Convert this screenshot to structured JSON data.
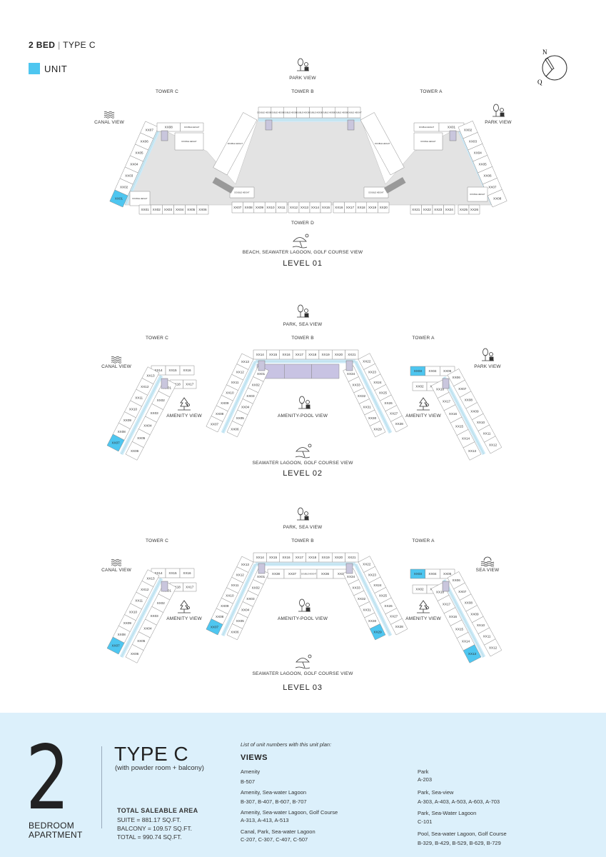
{
  "header": {
    "bed": "2 BED",
    "separator": "|",
    "type": "TYPE C"
  },
  "legend": {
    "label": "UNIT",
    "color": "#4ec6f0"
  },
  "compass": {
    "north": "N",
    "other": "Q"
  },
  "colors": {
    "unit_highlight": "#4ec6f0",
    "corridor": "#cdeaf8",
    "common_area": "#e3e3e3",
    "amenity_pool": "#c8c3e3",
    "panel": "#dcf0fb"
  },
  "levels": [
    {
      "title": "LEVEL 01",
      "top_view": "PARK VIEW",
      "bottom_view": "BEACH, SEAWATER LAGOON, GOLF COURSE VIEW",
      "towers": {
        "c": "TOWER C",
        "b": "TOWER B",
        "a": "TOWER A",
        "d": "TOWER D"
      },
      "left_view": "CANAL VIEW",
      "right_view": "PARK VIEW",
      "wings": {
        "c_diag": [
          "XX01",
          "XX02",
          "XX03",
          "XX04",
          "XX05",
          "XX06",
          "XX07"
        ],
        "c_top": [
          "XX08",
          "DOUBLE HEIGHT"
        ],
        "c_top2": [
          "DOUBLE HEIGHT"
        ],
        "c_low": [
          "DOUBLE HEIGHT"
        ],
        "c_bot": [
          "XX01",
          "XX02",
          "XX03",
          "XX04",
          "XX05",
          "XX06"
        ],
        "b_top": [
          "DOUBLE HEIGHT",
          "DOUBLE HEIGHT",
          "DOUBLE HEIGHT",
          "DOUBLE HEIGHT",
          "DOUBLE HEIGHT",
          "DOUBLE HEIGHT",
          "DOUBLE HEIGHT",
          "DOUBLE HEIGHT"
        ],
        "b_left": [
          "DOUBLE HEIGHT"
        ],
        "b_right": [
          "DOUBLE HEIGHT"
        ],
        "d_left_dh": [
          "DOUBLE HEIGHT"
        ],
        "d_right_dh": [
          "DOUBLE HEIGHT"
        ],
        "d_row1": [
          "XX07",
          "XX08",
          "XX09",
          "XX10",
          "XX11"
        ],
        "d_row2": [
          "XX12",
          "XX13",
          "XX14",
          "XX15"
        ],
        "d_row3": [
          "XX16",
          "XX17",
          "XX18",
          "XX19",
          "XX20"
        ],
        "a_top": [
          "DOUBLE HEIGHT",
          "XX01"
        ],
        "a_top2": [
          "DOUBLE HEIGHT"
        ],
        "a_diag": [
          "XX02",
          "XX03",
          "XX04",
          "XX05",
          "XX06",
          "XX07",
          "XX08"
        ],
        "a_low": [
          "DOUBLE HEIGHT"
        ],
        "a_bot1": [
          "XX21",
          "XX22",
          "XX23",
          "XX24"
        ],
        "a_bot2": [
          "XX25",
          "XX26"
        ]
      },
      "highlighted": [
        "c_diag:XX01"
      ]
    },
    {
      "title": "LEVEL 02",
      "top_view": "PARK, SEA VIEW",
      "bottom_view": "SEAWATER LAGOON, GOLF COURSE VIEW",
      "towers": {
        "c": "TOWER C",
        "b": "TOWER B",
        "a": "TOWER A"
      },
      "left_view": "CANAL VIEW",
      "right_view": "PARK VIEW",
      "amenity_left": "AMENITY VIEW",
      "amenity_center": "AMENITY-POOL VIEW",
      "amenity_right": "AMENITY VIEW",
      "wings": {
        "c_top": [
          "XX14",
          "XX15",
          "XX16"
        ],
        "c_top2": [
          "XX18",
          "XX17"
        ],
        "c_out": [
          "XX13",
          "XX12",
          "XX11",
          "XX10",
          "XX09",
          "XX08",
          "XX07"
        ],
        "c_in": [
          "XX01",
          "XX02",
          "XX03",
          "XX04",
          "XX05",
          "XX06"
        ],
        "b_top": [
          "XX14",
          "XX15",
          "XX16",
          "XX17",
          "XX18",
          "XX19",
          "XX20",
          "XX21"
        ],
        "b_mid": [
          "",
          "",
          ""
        ],
        "b_lout": [
          "XX13",
          "XX12",
          "XX11",
          "XX10",
          "XX09",
          "XX08",
          "XX07"
        ],
        "b_lin": [
          "XX01",
          "XX02",
          "XX03",
          "XX04",
          "XX05",
          "XX06"
        ],
        "b_rout": [
          "XX22",
          "XX23",
          "XX24",
          "XX25",
          "XX26",
          "XX27",
          "XX28"
        ],
        "b_rin": [
          "XX34",
          "XX33",
          "XX32",
          "XX31",
          "XX30",
          "XX29"
        ],
        "a_top": [
          "XX03",
          "XX04",
          "XX05"
        ],
        "a_top2": [
          "XX02",
          "XX01"
        ],
        "a_out": [
          "XX06",
          "XX07",
          "XX08",
          "XX09",
          "XX10",
          "XX11",
          "XX12"
        ],
        "a_in": [
          "XX18",
          "XX17",
          "XX16",
          "XX15",
          "XX14",
          "XX13"
        ]
      },
      "highlighted": [
        "c_out:XX07",
        "a_top:XX03"
      ]
    },
    {
      "title": "LEVEL 03",
      "top_view": "PARK, SEA VIEW",
      "bottom_view": "SEAWATER LAGOON, GOLF COURSE VIEW",
      "towers": {
        "c": "TOWER C",
        "b": "TOWER B",
        "a": "TOWER A"
      },
      "left_view": "CANAL VIEW",
      "right_view": "SEA VIEW",
      "amenity_left": "AMENITY VIEW",
      "amenity_center": "AMENITY-POOL VIEW",
      "amenity_right": "AMENITY VIEW",
      "wings": {
        "c_top": [
          "XX14",
          "XX15",
          "XX16"
        ],
        "c_top2": [
          "XX18",
          "XX17"
        ],
        "c_out": [
          "XX13",
          "XX12",
          "XX11",
          "XX10",
          "XX09",
          "XX08",
          "XX07"
        ],
        "c_in": [
          "XX01",
          "XX02",
          "XX03",
          "XX04",
          "XX05",
          "XX06"
        ],
        "b_top": [
          "XX14",
          "XX15",
          "XX16",
          "XX17",
          "XX18",
          "XX19",
          "XX20",
          "XX21"
        ],
        "b_mid": [
          "XX38",
          "XX37",
          "DOUBLE HEIGHT",
          "XX36",
          "XX35"
        ],
        "b_lout": [
          "XX13",
          "XX12",
          "XX11",
          "XX10",
          "XX09",
          "XX08",
          "XX07"
        ],
        "b_lin": [
          "XX01",
          "XX02",
          "XX03",
          "XX04",
          "XX05",
          "XX06"
        ],
        "b_rout": [
          "XX22",
          "XX23",
          "XX24",
          "XX25",
          "XX26",
          "XX27",
          "XX28"
        ],
        "b_rin": [
          "XX34",
          "XX33",
          "XX32",
          "XX31",
          "XX30",
          "XX29"
        ],
        "a_top": [
          "XX03",
          "XX04",
          "XX05"
        ],
        "a_top2": [
          "XX02",
          "XX01"
        ],
        "a_out": [
          "XX06",
          "XX07",
          "XX08",
          "XX09",
          "XX10",
          "XX11",
          "XX12"
        ],
        "a_in": [
          "XX18",
          "XX17",
          "XX16",
          "XX15",
          "XX14",
          "XX13"
        ]
      },
      "highlighted": [
        "c_out:XX07",
        "b_lout:XX07",
        "b_rin:XX29",
        "a_top:XX03",
        "a_in:XX13"
      ]
    }
  ],
  "summary": {
    "bedrooms": "2",
    "bedroom_label_1": "BEDROOM",
    "bedroom_label_2": "APARTMENT",
    "type": "TYPE C",
    "type_note": "(with powder room + balcony)",
    "area_title": "TOTAL SALEABLE AREA",
    "suite": "SUITE = 881.17 SQ.FT.",
    "balcony": "BALCONY = 109.57 SQ.FT.",
    "total": "TOTAL = 990.74 SQ.FT.",
    "list_intro": "List of unit numbers with this unit plan:",
    "views_heading": "VIEWS",
    "views": [
      {
        "name": "Amenity",
        "units": "B-507"
      },
      {
        "name": "Amenity, Sea-water Lagoon",
        "units": "B-307, B-407, B-607, B-707"
      },
      {
        "name": "Amenity, Sea-water Lagoon, Golf Course",
        "units": "A-313, A-413, A-513"
      },
      {
        "name": "Canal, Park, Sea-water Lagoon",
        "units": "C-207, C-307, C-407, C-507"
      },
      {
        "name": "Park",
        "units": "A-203"
      },
      {
        "name": "Park, Sea-view",
        "units": "A-303, A-403, A-503, A-603, A-703"
      },
      {
        "name": "Park, Sea-Water Lagoon",
        "units": "C-101"
      },
      {
        "name": "Pool, Sea-water Lagoon, Golf Course",
        "units": "B-329, B-429, B-529, B-629, B-729"
      }
    ]
  }
}
